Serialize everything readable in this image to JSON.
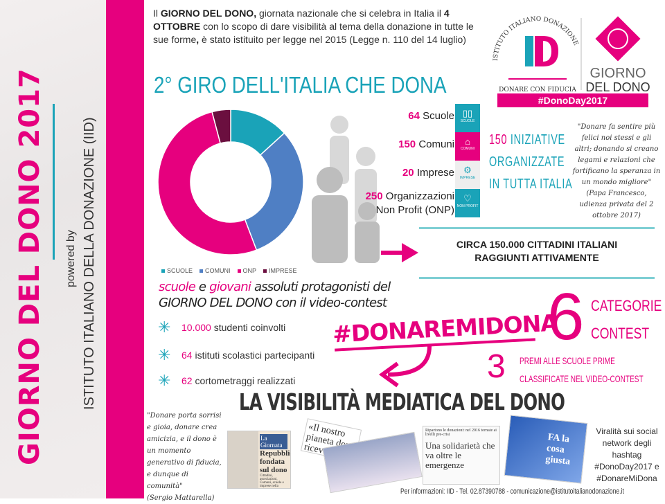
{
  "sidebar": {
    "title": "GIORNO DEL DONO 2017",
    "powered_by": "powered by",
    "institute": "ISTITUTO ITALIANO DELLA DONAZIONE (IID)"
  },
  "intro": {
    "p1": "Il ",
    "b1": "GIORNO DEL DONO,",
    "p2": " giornata nazionale che si celebra in Italia il ",
    "b2": "4 OTTOBRE",
    "p3": " con lo scopo di dare visibilità al tema della donazione in tutte le sue forme",
    "b3": ",",
    "p4": " è stato istituito per legge nel 2015 (Legge n. 110 del 14 luglio)"
  },
  "logo": {
    "iid_arc": "ISTITUTO ITALIANO DONAZIONE",
    "iid_letters": "ID",
    "iid_tagline": "DONARE CON FIDUCIA",
    "gdd_line1": "GIORNO",
    "gdd_line2": "DEL DONO",
    "hashtag": "#DonoDay2017"
  },
  "giro_title": "2° GIRO DELL'ITALIA CHE DONA",
  "chart_data": {
    "type": "pie",
    "subtype": "donut",
    "categories": [
      "SCUOLE",
      "COMUNI",
      "ONP",
      "IMPRESE"
    ],
    "values": [
      64,
      150,
      250,
      20
    ],
    "colors": [
      "#1aa3b8",
      "#4f7fc4",
      "#e6007e",
      "#6b0f3f"
    ],
    "legend": "bottom"
  },
  "stats": [
    {
      "num": "64",
      "label": "Scuole",
      "tile": "SCUOLE",
      "color": "#1aa3b8",
      "icon": "book-icon"
    },
    {
      "num": "150",
      "label": "Comuni",
      "tile": "COMUNI",
      "color": "#e6007e",
      "icon": "building-icon"
    },
    {
      "num": "20",
      "label": "Imprese",
      "tile": "IMPRESE",
      "color": "#eeeeee",
      "icon": "gears-icon"
    },
    {
      "num": "250",
      "label": "Organizzazioni",
      "label2": "Non Profit (ONP)",
      "tile": "NON PROFIT",
      "color": "#1aa3b8",
      "icon": "heart-icon"
    }
  ],
  "tile_brand": "DONODAY",
  "iniziative": {
    "num": "150",
    "l1": "INIZIATIVE",
    "l2": "ORGANIZZATE",
    "l3": "IN TUTTA ITALIA"
  },
  "quote_pope": {
    "text": "\"Donare fa sentire più felici noi stessi e gli altri; donando si creano legami e relazioni che fortificano la speranza in un mondo migliore\"",
    "source": "(Papa Francesco, udienza privata del 2 ottobre 2017)"
  },
  "circa": {
    "l1": "CIRCA 150.000 CITTADINI ITALIANI",
    "l2": "RAGGIUNTI ATTIVAMENTE"
  },
  "contest": {
    "w1": "scuole",
    "w2": " e ",
    "w3": "giovani",
    "w4": " assoluti protagonisti del",
    "l2": "GIORNO DEL DONO con il video-contest"
  },
  "bullets": [
    {
      "num": "10.000",
      "text": "studenti coinvolti"
    },
    {
      "num": "64",
      "text": "istituti scolastici partecipanti"
    },
    {
      "num": "62",
      "text": "cortometraggi realizzati"
    }
  ],
  "hashtag": "#DONAREMIDONA",
  "categorie": {
    "num": "6",
    "l1": "CATEGORIE",
    "l2": "CONTEST"
  },
  "premi": {
    "num": "3",
    "l1": "PREMI ALLE SCUOLE PRIME",
    "l2": "CLASSIFICATE NEL VIDEO-CONTEST"
  },
  "visibilita": "LA VISIBILITÀ MEDIATICA DEL DONO",
  "quote_mattarella": {
    "text": "\"Donare porta sorrisi e gioia, donare crea amicizia, e il dono è un momento generativo di fiducia, e dunque di comunità\"",
    "source": "(Sergio Mattarella)"
  },
  "clips": {
    "c1_head": "La Giornata",
    "c1_title": "Repubblica fondata sul dono",
    "c1_body": "Cittadini, associazioni, Comuni, scuole e imprese nella seconda edizione del Giro d'Italia che dona, mercoledì.",
    "c2": "«Il nostro pianeta dono ricevuto da co...",
    "c3_head": "Ripartono le donazioni: nel 2016 tornate ai livelli pre-crisi",
    "c3_title": "Una solidarietà che va oltre le emergenze",
    "c4": "FA la cosa giusta"
  },
  "viral": "Viralità sui social network degli hashtag #DonoDay2017 e #DonareMiDona",
  "info": "Per informazioni: IID - Tel. 02.87390788 - comunicazione@istitutoitalianodonazione.it"
}
